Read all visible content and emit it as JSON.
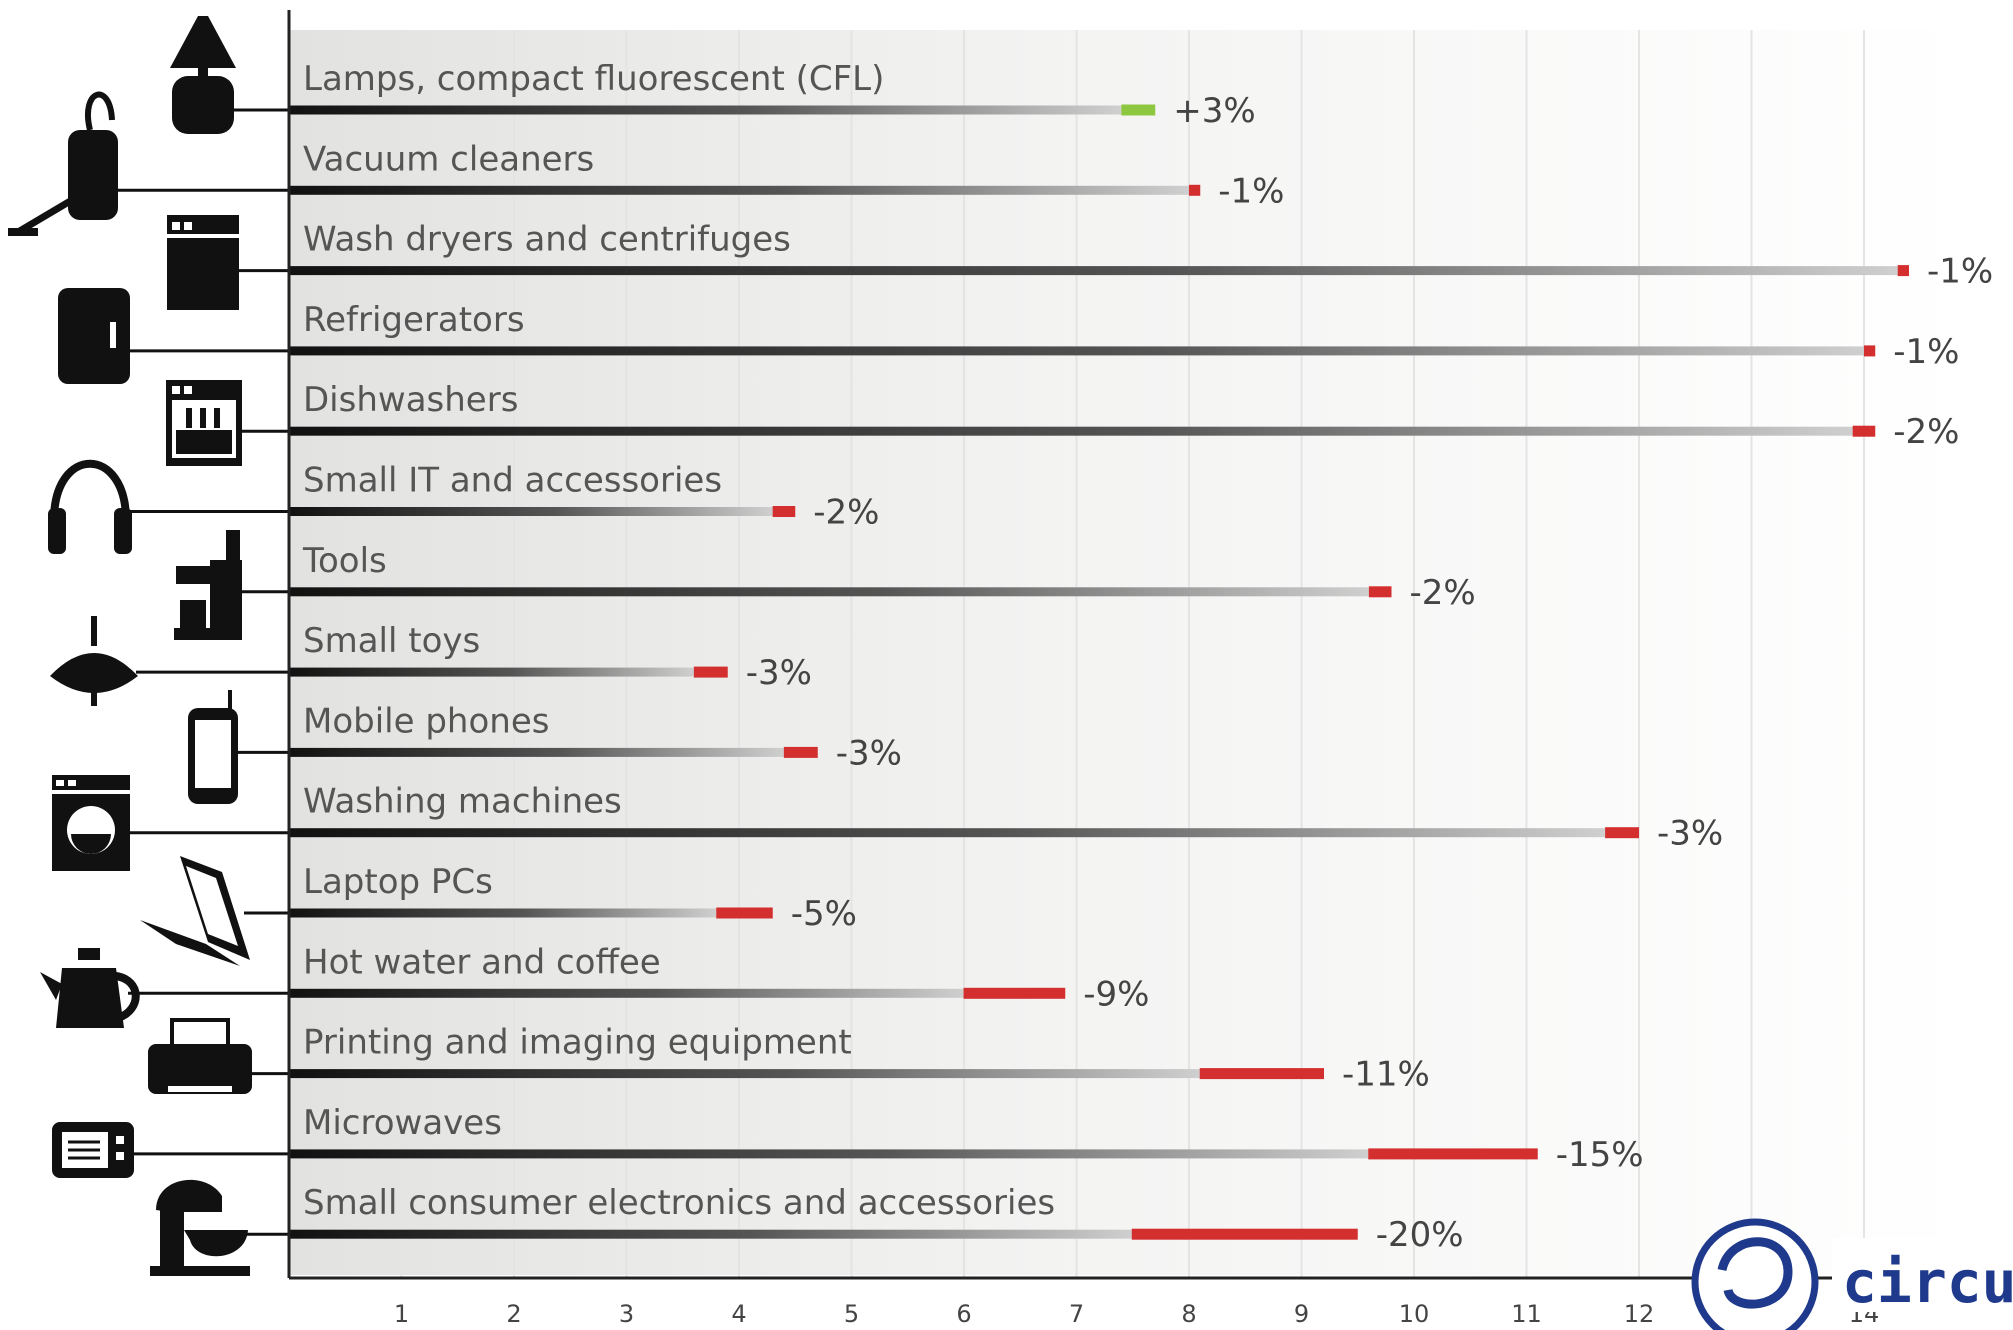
{
  "chart_data": {
    "type": "bar",
    "orientation": "horizontal",
    "title": "",
    "xlabel": "",
    "ylabel": "",
    "xlim": [
      0,
      15
    ],
    "x_ticks": [
      "1",
      "2",
      "3",
      "4",
      "5",
      "6",
      "7",
      "8",
      "9",
      "10",
      "11",
      "12",
      "13",
      "14"
    ],
    "grid": true,
    "categories": [
      "Lamps, compact fluorescent (CFL)",
      "Vacuum cleaners",
      "Wash dryers and centrifuges",
      "Refrigerators",
      "Dishwashers",
      "Small IT and accessories",
      "Tools",
      "Small toys",
      "Mobile phones",
      "Washing machines",
      "Laptop PCs",
      "Hot water and coffee",
      "Printing and imaging equipment",
      "Microwaves",
      "Small consumer electronics and accessories"
    ],
    "values": [
      7.7,
      8.1,
      14.4,
      14.1,
      14.1,
      4.5,
      9.8,
      3.9,
      4.7,
      12.0,
      4.3,
      6.9,
      9.2,
      11.1,
      9.5
    ],
    "change_labels": [
      "+3%",
      "-1%",
      "-1%",
      "-1%",
      "-2%",
      "-2%",
      "-2%",
      "-3%",
      "-3%",
      "-3%",
      "-5%",
      "-9%",
      "-11%",
      "-15%",
      "-20%"
    ],
    "change_pct": [
      3,
      -1,
      -1,
      -1,
      -2,
      -2,
      -2,
      -3,
      -3,
      -3,
      -5,
      -9,
      -11,
      -15,
      -20
    ],
    "icons": [
      "lamp-icon",
      "vacuum-cleaner-icon",
      "wash-dryer-icon",
      "refrigerator-icon",
      "dishwasher-icon",
      "headphones-icon",
      "drill-icon",
      "spinning-top-icon",
      "mobile-phone-icon",
      "washing-machine-icon",
      "laptop-icon",
      "kettle-icon",
      "printer-icon",
      "microwave-icon",
      "stand-mixer-icon"
    ],
    "colors": {
      "increase": "#8dc63f",
      "decrease": "#d32f2f",
      "bar_dark": "#1a1a1a",
      "bar_light": "#c8c8c8"
    }
  },
  "brand": {
    "logo_text": "circu",
    "color": "#1f3a8c"
  }
}
